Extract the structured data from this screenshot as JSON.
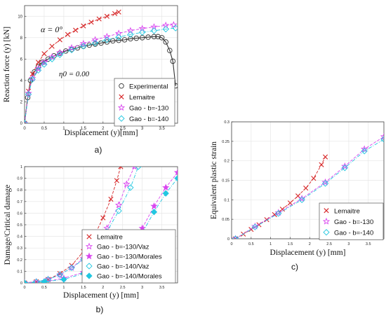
{
  "chart_data": [
    {
      "panel_label": "a)",
      "type": "line",
      "xlabel": "Displacement (y)[mm]",
      "ylabel": "Reaction force (y) [kN]",
      "xlim": [
        0,
        3.9
      ],
      "ylim": [
        0,
        11
      ],
      "xticks": [
        "0",
        "0.5",
        "1",
        "1.5",
        "2",
        "2.5",
        "3",
        "3.5"
      ],
      "xtick_values": [
        0,
        0.5,
        1,
        1.5,
        2,
        2.5,
        3,
        3.5
      ],
      "yticks": [
        "0",
        "2",
        "4",
        "6",
        "8",
        "10"
      ],
      "ytick_values": [
        0,
        2,
        4,
        6,
        8,
        10
      ],
      "annotations": [
        "α = 0°",
        "η0 = 0.00"
      ],
      "legend_position": "bottom-right",
      "series": [
        {
          "name": "Experimental",
          "marker": "circle",
          "color": "#333333",
          "x": [
            0,
            0.08,
            0.15,
            0.25,
            0.35,
            0.45,
            0.6,
            0.75,
            0.9,
            1.05,
            1.2,
            1.35,
            1.5,
            1.65,
            1.8,
            1.95,
            2.1,
            2.25,
            2.4,
            2.55,
            2.7,
            2.85,
            3.0,
            3.15,
            3.3,
            3.4,
            3.5,
            3.6,
            3.7,
            3.78,
            3.85
          ],
          "y": [
            0,
            2.4,
            4.0,
            4.8,
            5.3,
            5.7,
            6.0,
            6.3,
            6.55,
            6.75,
            6.9,
            7.05,
            7.2,
            7.3,
            7.4,
            7.5,
            7.6,
            7.7,
            7.75,
            7.8,
            7.9,
            7.95,
            8.0,
            8.05,
            8.1,
            8.1,
            8.0,
            7.6,
            6.8,
            5.8,
            3.5
          ]
        },
        {
          "name": "Lemaitre",
          "marker": "x",
          "color": "#d62728",
          "x": [
            0,
            0.1,
            0.2,
            0.35,
            0.5,
            0.7,
            0.9,
            1.1,
            1.3,
            1.5,
            1.7,
            1.9,
            2.1,
            2.3,
            2.4
          ],
          "y": [
            0,
            3.0,
            4.6,
            5.7,
            6.5,
            7.2,
            7.8,
            8.3,
            8.7,
            9.1,
            9.45,
            9.75,
            10.0,
            10.25,
            10.4
          ]
        },
        {
          "name": "Gao - b=-130",
          "marker": "star",
          "color": "#d946ef",
          "x": [
            0,
            0.1,
            0.2,
            0.35,
            0.5,
            0.7,
            0.9,
            1.2,
            1.5,
            1.8,
            2.1,
            2.4,
            2.7,
            3.0,
            3.3,
            3.6,
            3.8
          ],
          "y": [
            0,
            2.8,
            4.2,
            5.1,
            5.7,
            6.2,
            6.6,
            7.05,
            7.45,
            7.8,
            8.1,
            8.4,
            8.65,
            8.85,
            9.0,
            9.15,
            9.2
          ]
        },
        {
          "name": "Gao - b=-140",
          "marker": "diamond",
          "color": "#22c7e0",
          "x": [
            0,
            0.1,
            0.2,
            0.35,
            0.5,
            0.7,
            0.9,
            1.2,
            1.5,
            1.8,
            2.1,
            2.4,
            2.7,
            3.0,
            3.3,
            3.6,
            3.85
          ],
          "y": [
            0,
            2.7,
            4.1,
            4.95,
            5.5,
            6.0,
            6.4,
            6.85,
            7.2,
            7.5,
            7.8,
            8.05,
            8.3,
            8.5,
            8.65,
            8.8,
            8.9
          ]
        }
      ]
    },
    {
      "panel_label": "b)",
      "type": "line",
      "xlabel": "Displacement (y) [mm]",
      "ylabel": "Damage/Critical damage",
      "xlim": [
        0,
        3.9
      ],
      "ylim": [
        0,
        1
      ],
      "xticks": [
        "0",
        "0.5",
        "1",
        "1.5",
        "2",
        "2.5",
        "3",
        "3.5"
      ],
      "xtick_values": [
        0,
        0.5,
        1,
        1.5,
        2,
        2.5,
        3,
        3.5
      ],
      "yticks": [
        "0",
        "0.1",
        "0.2",
        "0.3",
        "0.4",
        "0.5",
        "0.6",
        "0.7",
        "0.8",
        "0.9",
        "1"
      ],
      "ytick_values": [
        0,
        0.1,
        0.2,
        0.3,
        0.4,
        0.5,
        0.6,
        0.7,
        0.8,
        0.9,
        1
      ],
      "legend_position": "bottom-left",
      "series": [
        {
          "name": "Lemaitre",
          "marker": "x",
          "color": "#d62728",
          "x": [
            0,
            0.3,
            0.6,
            0.9,
            1.2,
            1.5,
            1.8,
            2.0,
            2.2,
            2.35,
            2.45
          ],
          "y": [
            0,
            0.01,
            0.03,
            0.08,
            0.15,
            0.27,
            0.42,
            0.56,
            0.72,
            0.88,
            1.0
          ]
        },
        {
          "name": "Gao - b=-130/Vaz",
          "marker": "star",
          "color": "#d946ef",
          "x": [
            0,
            0.3,
            0.6,
            0.9,
            1.2,
            1.5,
            1.8,
            2.1,
            2.4,
            2.6,
            2.8
          ],
          "y": [
            0,
            0.01,
            0.03,
            0.07,
            0.13,
            0.21,
            0.32,
            0.47,
            0.67,
            0.85,
            1.0
          ]
        },
        {
          "name": "Gao - b=-130/Morales",
          "marker": "star-filled",
          "color": "#d946ef",
          "x": [
            0,
            0.5,
            1.0,
            1.5,
            2.0,
            2.5,
            3.0,
            3.3,
            3.6,
            3.9
          ],
          "y": [
            0,
            0.01,
            0.04,
            0.09,
            0.17,
            0.29,
            0.47,
            0.66,
            0.82,
            0.95
          ]
        },
        {
          "name": "Gao - b=-140/Vaz",
          "marker": "diamond",
          "color": "#22c7e0",
          "x": [
            0,
            0.3,
            0.6,
            0.9,
            1.2,
            1.5,
            1.8,
            2.1,
            2.4,
            2.7,
            2.9
          ],
          "y": [
            0,
            0.01,
            0.03,
            0.07,
            0.13,
            0.2,
            0.3,
            0.44,
            0.62,
            0.82,
            1.0
          ]
        },
        {
          "name": "Gao - b=-140/Morales",
          "marker": "diamond-filled",
          "color": "#22c7e0",
          "x": [
            0,
            0.5,
            1.0,
            1.5,
            2.0,
            2.5,
            3.0,
            3.3,
            3.6,
            3.9
          ],
          "y": [
            0,
            0.01,
            0.03,
            0.08,
            0.15,
            0.26,
            0.43,
            0.61,
            0.77,
            0.9
          ]
        }
      ]
    },
    {
      "panel_label": "c)",
      "type": "line",
      "xlabel": "Displacement (y) [mm]",
      "ylabel": "Equivalent plastic strain",
      "xlim": [
        0,
        3.9
      ],
      "ylim": [
        0,
        0.3
      ],
      "xticks": [
        "0",
        "0.5",
        "1",
        "1.5",
        "2",
        "2.5",
        "3",
        "3.5"
      ],
      "xtick_values": [
        0,
        0.5,
        1,
        1.5,
        2,
        2.5,
        3,
        3.5
      ],
      "yticks": [
        "0",
        "0.05",
        "0.1",
        "0.15",
        "0.2",
        "0.25",
        "0.3"
      ],
      "ytick_values": [
        0,
        0.05,
        0.1,
        0.15,
        0.2,
        0.25,
        0.3
      ],
      "legend_position": "bottom-right",
      "series": [
        {
          "name": "Lemaitre",
          "marker": "x",
          "color": "#d62728",
          "x": [
            0.1,
            0.3,
            0.5,
            0.7,
            0.9,
            1.1,
            1.3,
            1.5,
            1.7,
            1.9,
            2.1,
            2.3,
            2.4
          ],
          "y": [
            0.0,
            0.012,
            0.024,
            0.036,
            0.049,
            0.062,
            0.076,
            0.092,
            0.11,
            0.13,
            0.155,
            0.19,
            0.21
          ]
        },
        {
          "name": "Gao - b=-130",
          "marker": "star",
          "color": "#d946ef",
          "x": [
            0.1,
            0.6,
            1.2,
            1.8,
            2.4,
            2.9,
            3.4,
            3.9
          ],
          "y": [
            0.0,
            0.032,
            0.067,
            0.103,
            0.145,
            0.186,
            0.23,
            0.262
          ]
        },
        {
          "name": "Gao - b=-140",
          "marker": "diamond",
          "color": "#22c7e0",
          "x": [
            0.1,
            0.6,
            1.2,
            1.8,
            2.4,
            2.9,
            3.4,
            3.9
          ],
          "y": [
            0.0,
            0.03,
            0.065,
            0.1,
            0.142,
            0.182,
            0.225,
            0.255
          ]
        }
      ]
    }
  ]
}
